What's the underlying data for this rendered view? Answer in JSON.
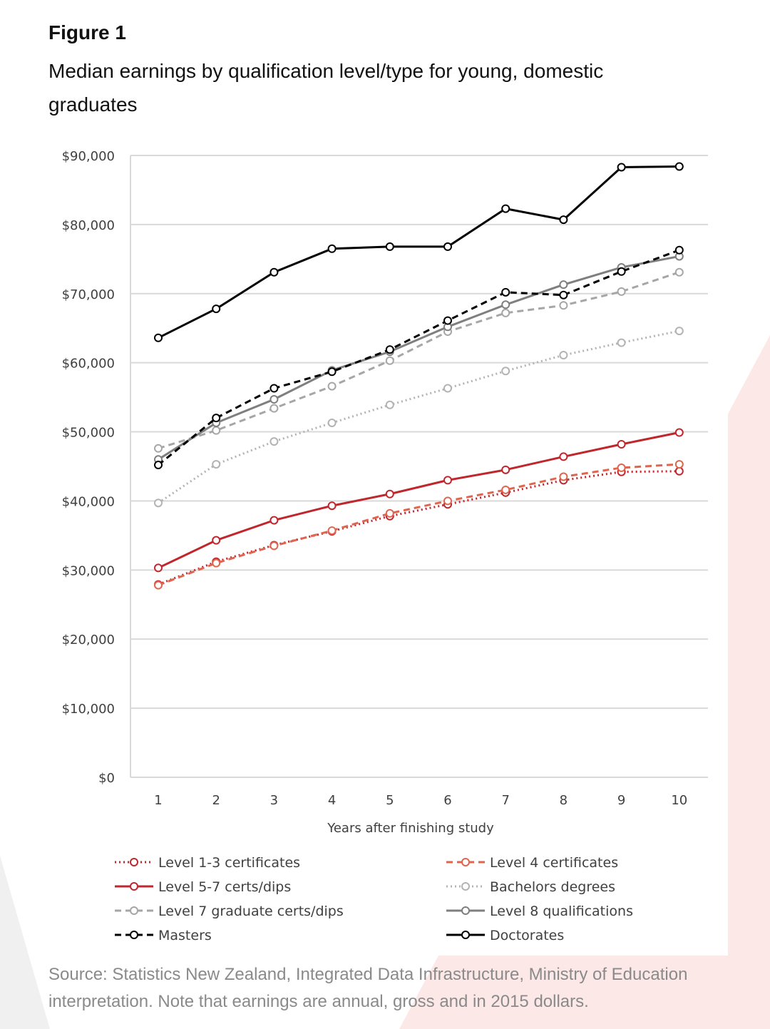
{
  "header": {
    "figure_label": "Figure 1",
    "title": "Median earnings by qualification level/type for young, domestic graduates"
  },
  "source_note": "Source: Statistics New Zealand, Integrated Data Infrastructure, Ministry of Education interpretation. Note that earnings are annual, gross and in 2015 dollars.",
  "colors": {
    "accent_red": "#c0272d",
    "orange": "#e0654f",
    "light_grey": "#a6a6a6",
    "mid_grey": "#7f7f7f",
    "black": "#000000",
    "grid": "#d9d9d9",
    "background_wedge": "#fbe8e7"
  },
  "chart_data": {
    "type": "line",
    "title": "Median earnings by qualification level/type for young, domestic graduates",
    "xlabel": "Years after finishing study",
    "ylabel": "",
    "x": [
      1,
      2,
      3,
      4,
      5,
      6,
      7,
      8,
      9,
      10
    ],
    "ylim": [
      0,
      90000
    ],
    "yticks": [
      0,
      10000,
      20000,
      30000,
      40000,
      50000,
      60000,
      70000,
      80000,
      90000
    ],
    "ytick_labels": [
      "$0",
      "$10,000",
      "$20,000",
      "$30,000",
      "$40,000",
      "$50,000",
      "$60,000",
      "$70,000",
      "$80,000",
      "$90,000"
    ],
    "grid": true,
    "legend_position": "bottom",
    "series": [
      {
        "name": "Level 1-3 certificates",
        "color": "#c0272d",
        "style": "dotted",
        "values": [
          27900,
          31200,
          33600,
          35600,
          37800,
          39500,
          41200,
          43000,
          44200,
          44300
        ]
      },
      {
        "name": "Level 4 certificates",
        "color": "#e0654f",
        "style": "dashed",
        "values": [
          27800,
          31000,
          33500,
          35700,
          38200,
          40000,
          41600,
          43500,
          44800,
          45300
        ]
      },
      {
        "name": "Level 5-7 certs/dips",
        "color": "#c0272d",
        "style": "solid",
        "values": [
          30300,
          34300,
          37200,
          39300,
          41000,
          43000,
          44500,
          46400,
          48200,
          49900
        ]
      },
      {
        "name": "Bachelors degrees",
        "color": "#b3b3b3",
        "style": "dotted",
        "values": [
          39700,
          45300,
          48600,
          51300,
          53900,
          56300,
          58800,
          61100,
          62900,
          64600
        ]
      },
      {
        "name": "Level 7 graduate certs/dips",
        "color": "#a6a6a6",
        "style": "dashed",
        "values": [
          47600,
          50200,
          53400,
          56600,
          60300,
          64500,
          67200,
          68300,
          70300,
          73100
        ]
      },
      {
        "name": "Level 8 qualifications",
        "color": "#7f7f7f",
        "style": "solid",
        "values": [
          46000,
          51300,
          54700,
          58900,
          61600,
          65200,
          68400,
          71300,
          73800,
          75400
        ]
      },
      {
        "name": "Masters",
        "color": "#000000",
        "style": "dashed",
        "values": [
          45200,
          52000,
          56300,
          58700,
          61900,
          66100,
          70200,
          69800,
          73200,
          76300
        ]
      },
      {
        "name": "Doctorates",
        "color": "#000000",
        "style": "solid",
        "values": [
          63600,
          67800,
          73100,
          76500,
          76800,
          76800,
          82300,
          80700,
          88300,
          88400
        ]
      }
    ]
  }
}
